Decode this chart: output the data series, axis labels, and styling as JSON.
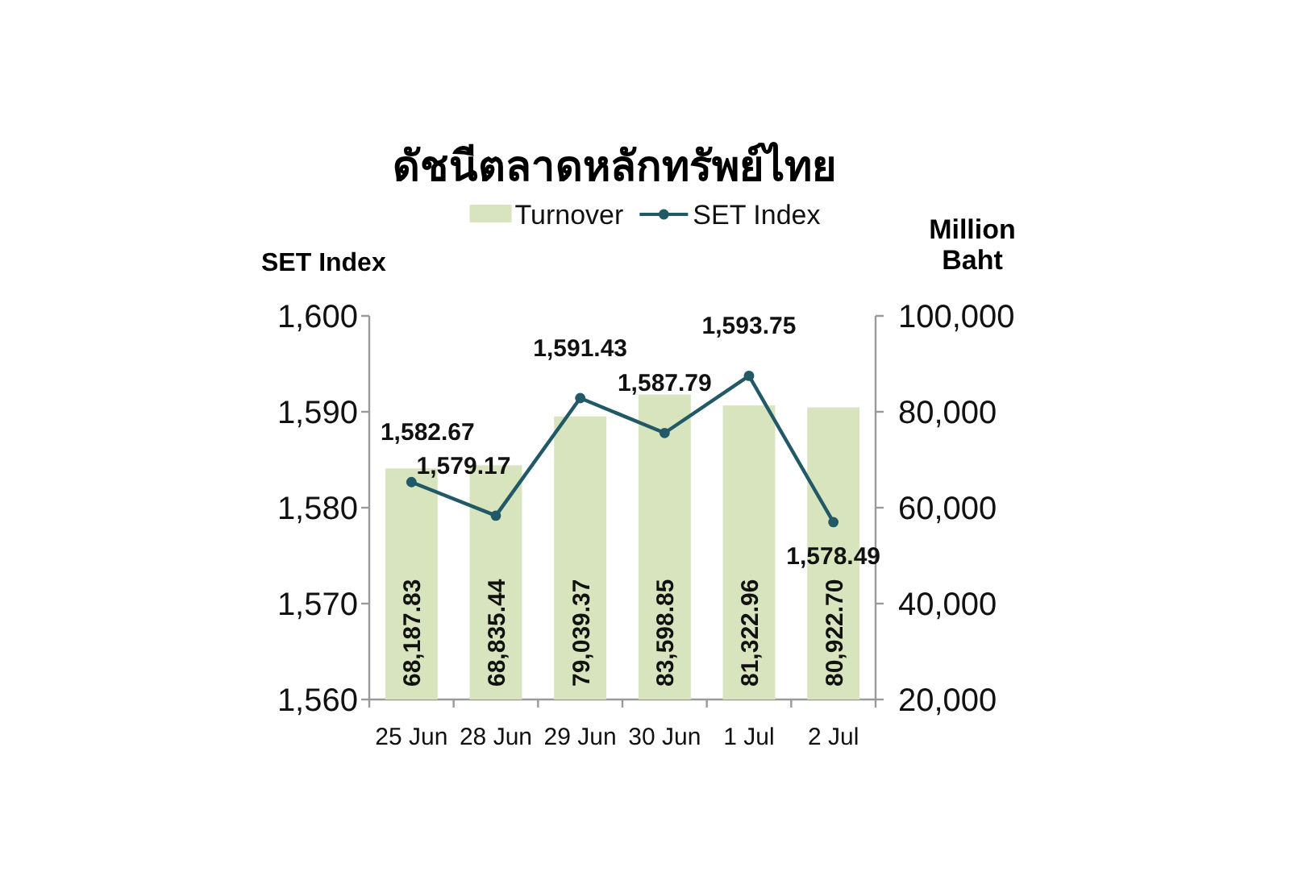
{
  "chart_data": {
    "type": "bar",
    "title": "ดัชนีตลาดหลักทรัพย์ไทย",
    "categories": [
      "25 Jun",
      "28 Jun",
      "29 Jun",
      "30 Jun",
      "1 Jul",
      "2 Jul"
    ],
    "series": [
      {
        "name": "Turnover",
        "axis": "y2",
        "color": "#d7e4bd",
        "values": [
          68187.83,
          68835.44,
          79039.37,
          83598.85,
          81322.96,
          80922.7
        ],
        "value_labels": [
          "68,187.83",
          "68,835.44",
          "79,039.37",
          "83,598.85",
          "81,322.96",
          "80,922.70"
        ]
      },
      {
        "name": "SET Index",
        "type": "line",
        "axis": "y",
        "color": "#215967",
        "marker": "circle",
        "values": [
          1582.67,
          1579.17,
          1591.43,
          1587.79,
          1593.75,
          1578.49
        ],
        "value_labels": [
          "1,582.67",
          "1,579.17",
          "1,591.43",
          "1,587.79",
          "1,593.75",
          "1,578.49"
        ]
      }
    ],
    "ylabel": "SET Index",
    "y2label": "Million Baht",
    "ylim": [
      1560,
      1600
    ],
    "yticks": [
      {
        "value": 1560,
        "label": "1,560"
      },
      {
        "value": 1570,
        "label": "1,570"
      },
      {
        "value": 1580,
        "label": "1,580"
      },
      {
        "value": 1590,
        "label": "1,590"
      },
      {
        "value": 1600,
        "label": "1,600"
      }
    ],
    "y2lim": [
      20000,
      100000
    ],
    "y2ticks": [
      {
        "value": 20000,
        "label": "20,000"
      },
      {
        "value": 40000,
        "label": "40,000"
      },
      {
        "value": 60000,
        "label": "60,000"
      },
      {
        "value": 80000,
        "label": "80,000"
      },
      {
        "value": 100000,
        "label": "100,000"
      }
    ],
    "legend": "top"
  }
}
